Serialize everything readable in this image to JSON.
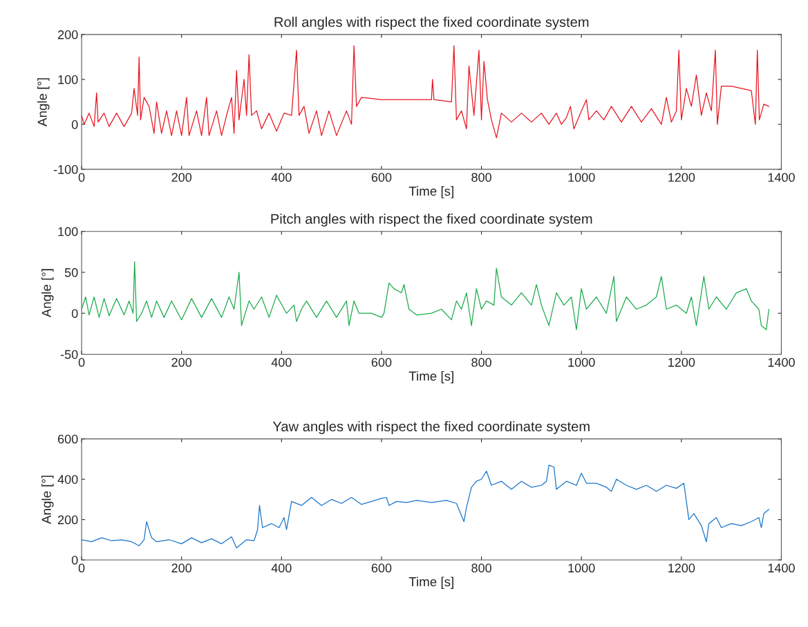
{
  "chart_data": [
    {
      "type": "line",
      "title": "Roll angles with rispect the fixed coordinate system",
      "xlabel": "Time [s]",
      "ylabel": "Angle [°]",
      "xlim": [
        0,
        1400
      ],
      "xticks": [
        0,
        200,
        400,
        600,
        800,
        1000,
        1200,
        1400
      ],
      "ylim": [
        -100,
        200
      ],
      "yticks": [
        -100,
        0,
        100,
        200
      ],
      "grid": false,
      "marker": "none",
      "line_style": "solid",
      "series": [
        {
          "color": "#e8141e",
          "x": [
            0,
            5,
            15,
            25,
            30,
            33,
            45,
            55,
            70,
            85,
            100,
            105,
            112,
            115,
            118,
            125,
            135,
            145,
            150,
            160,
            170,
            180,
            190,
            200,
            210,
            215,
            230,
            240,
            250,
            255,
            270,
            280,
            290,
            300,
            305,
            310,
            315,
            325,
            330,
            335,
            340,
            350,
            360,
            375,
            390,
            405,
            420,
            430,
            435,
            445,
            455,
            470,
            480,
            495,
            510,
            530,
            540,
            545,
            550,
            560,
            600,
            650,
            700,
            702,
            705,
            740,
            745,
            750,
            760,
            770,
            775,
            785,
            795,
            800,
            805,
            812,
            820,
            830,
            840,
            860,
            880,
            900,
            920,
            935,
            950,
            960,
            970,
            978,
            985,
            1000,
            1010,
            1015,
            1030,
            1045,
            1060,
            1080,
            1100,
            1120,
            1140,
            1160,
            1170,
            1180,
            1190,
            1195,
            1200,
            1210,
            1220,
            1230,
            1240,
            1250,
            1260,
            1268,
            1272,
            1280,
            1300,
            1320,
            1340,
            1348,
            1352,
            1356,
            1365,
            1375
          ],
          "values": [
            20,
            0,
            25,
            -5,
            70,
            5,
            25,
            -5,
            25,
            -5,
            25,
            80,
            20,
            150,
            10,
            60,
            40,
            -20,
            50,
            -20,
            30,
            -25,
            30,
            -25,
            60,
            -25,
            30,
            -25,
            60,
            -25,
            30,
            -25,
            20,
            60,
            -20,
            120,
            10,
            100,
            20,
            155,
            20,
            30,
            -10,
            25,
            -15,
            25,
            20,
            165,
            20,
            40,
            -20,
            30,
            -25,
            30,
            -25,
            30,
            0,
            175,
            40,
            60,
            55,
            55,
            55,
            100,
            55,
            50,
            175,
            10,
            30,
            -10,
            130,
            20,
            165,
            10,
            140,
            55,
            10,
            -30,
            25,
            5,
            25,
            5,
            25,
            0,
            25,
            0,
            15,
            40,
            -10,
            30,
            55,
            10,
            30,
            10,
            40,
            5,
            40,
            5,
            35,
            0,
            60,
            5,
            30,
            165,
            10,
            80,
            40,
            110,
            20,
            70,
            30,
            165,
            0,
            85,
            85,
            80,
            75,
            0,
            165,
            10,
            45,
            40
          ]
        }
      ]
    },
    {
      "type": "line",
      "title": "Pitch angles with rispect the fixed coordinate system",
      "xlabel": "Time [s]",
      "ylabel": "Angle [°]",
      "xlim": [
        0,
        1400
      ],
      "xticks": [
        0,
        200,
        400,
        600,
        800,
        1000,
        1200,
        1400
      ],
      "ylim": [
        -50,
        100
      ],
      "yticks": [
        -50,
        0,
        50,
        100
      ],
      "grid": false,
      "marker": "none",
      "line_style": "solid",
      "series": [
        {
          "color": "#1aaa4a",
          "x": [
            0,
            8,
            15,
            25,
            35,
            45,
            55,
            70,
            85,
            95,
            103,
            106,
            110,
            120,
            130,
            140,
            150,
            165,
            180,
            200,
            220,
            240,
            260,
            280,
            295,
            305,
            315,
            320,
            335,
            345,
            360,
            375,
            390,
            410,
            425,
            430,
            440,
            450,
            470,
            490,
            510,
            530,
            535,
            545,
            555,
            580,
            600,
            605,
            615,
            625,
            640,
            645,
            655,
            670,
            700,
            720,
            740,
            750,
            760,
            770,
            780,
            790,
            800,
            810,
            825,
            830,
            840,
            860,
            880,
            900,
            910,
            920,
            935,
            950,
            965,
            980,
            990,
            1000,
            1010,
            1030,
            1050,
            1065,
            1070,
            1090,
            1110,
            1130,
            1150,
            1160,
            1170,
            1190,
            1210,
            1220,
            1230,
            1245,
            1255,
            1270,
            1290,
            1310,
            1330,
            1340,
            1355,
            1360,
            1370,
            1375
          ],
          "values": [
            5,
            20,
            -2,
            20,
            -5,
            18,
            -3,
            18,
            -2,
            15,
            0,
            63,
            -10,
            0,
            15,
            -5,
            15,
            -5,
            15,
            -8,
            18,
            -5,
            18,
            -5,
            20,
            5,
            50,
            -15,
            15,
            5,
            20,
            -5,
            22,
            0,
            10,
            -10,
            5,
            15,
            -5,
            15,
            -5,
            15,
            -15,
            15,
            0,
            0,
            -5,
            0,
            37,
            30,
            25,
            35,
            5,
            -2,
            0,
            5,
            -8,
            15,
            5,
            25,
            -15,
            30,
            5,
            15,
            10,
            55,
            20,
            10,
            25,
            10,
            35,
            10,
            -15,
            25,
            10,
            20,
            -20,
            30,
            5,
            20,
            0,
            45,
            -10,
            20,
            5,
            10,
            20,
            45,
            5,
            10,
            0,
            20,
            -15,
            45,
            5,
            20,
            5,
            25,
            30,
            15,
            5,
            -15,
            -20,
            5
          ]
        }
      ]
    },
    {
      "type": "line",
      "title": "Yaw angles with rispect the fixed coordinate system",
      "xlabel": "Time [s]",
      "ylabel": "Angle [°]",
      "xlim": [
        0,
        1400
      ],
      "xticks": [
        0,
        200,
        400,
        600,
        800,
        1000,
        1200,
        1400
      ],
      "ylim": [
        0,
        600
      ],
      "yticks": [
        0,
        200,
        400,
        600
      ],
      "grid": false,
      "marker": "none",
      "line_style": "solid",
      "series": [
        {
          "color": "#1874c8",
          "x": [
            0,
            20,
            40,
            60,
            80,
            100,
            115,
            125,
            130,
            140,
            150,
            175,
            200,
            220,
            240,
            260,
            280,
            300,
            310,
            330,
            345,
            352,
            356,
            362,
            380,
            395,
            405,
            410,
            420,
            440,
            460,
            480,
            500,
            520,
            540,
            560,
            580,
            600,
            610,
            615,
            630,
            650,
            670,
            700,
            730,
            750,
            760,
            765,
            770,
            780,
            790,
            800,
            810,
            820,
            840,
            860,
            880,
            900,
            920,
            930,
            935,
            945,
            950,
            970,
            990,
            1000,
            1010,
            1030,
            1050,
            1060,
            1070,
            1090,
            1110,
            1130,
            1150,
            1170,
            1190,
            1205,
            1210,
            1215,
            1225,
            1240,
            1250,
            1255,
            1270,
            1280,
            1300,
            1320,
            1340,
            1355,
            1360,
            1365,
            1375
          ],
          "values": [
            100,
            90,
            110,
            95,
            100,
            90,
            70,
            100,
            190,
            110,
            90,
            100,
            80,
            110,
            85,
            105,
            80,
            115,
            60,
            100,
            95,
            150,
            270,
            160,
            180,
            160,
            210,
            150,
            290,
            270,
            310,
            270,
            300,
            280,
            310,
            275,
            290,
            305,
            310,
            270,
            290,
            285,
            295,
            285,
            295,
            280,
            220,
            190,
            260,
            360,
            390,
            400,
            440,
            370,
            390,
            350,
            390,
            360,
            370,
            390,
            470,
            460,
            350,
            390,
            370,
            430,
            380,
            380,
            360,
            340,
            400,
            370,
            350,
            370,
            340,
            370,
            355,
            380,
            290,
            200,
            230,
            170,
            90,
            180,
            210,
            160,
            180,
            170,
            190,
            210,
            160,
            230,
            250
          ]
        }
      ]
    }
  ]
}
